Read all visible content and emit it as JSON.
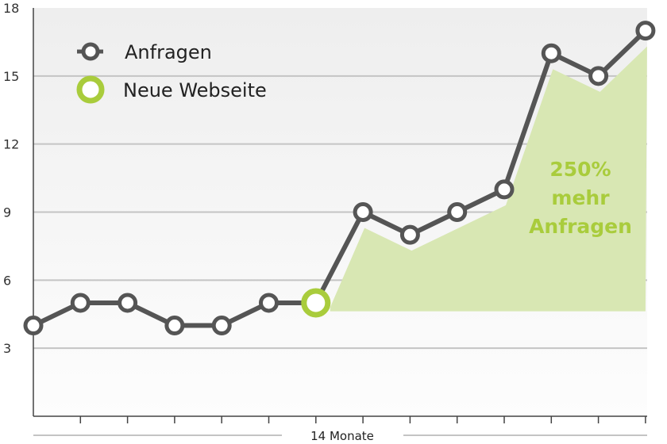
{
  "chart_data": {
    "type": "line",
    "title": "",
    "xlabel": "14 Monate",
    "ylabel": "",
    "ylim": [
      0,
      18
    ],
    "yticks": [
      3,
      6,
      9,
      12,
      15,
      18
    ],
    "x_count": 14,
    "grid": true,
    "legend_position": "top-left",
    "series": [
      {
        "name": "Anfragen",
        "color": "#555555",
        "values": [
          4,
          5,
          5,
          4,
          4,
          5,
          5,
          9,
          8,
          9,
          10,
          16,
          15,
          17
        ]
      }
    ],
    "markers": {
      "new_website_index": 6
    },
    "highlight_area": {
      "start_index": 6,
      "baseline": 4.8,
      "color": "#d8e7b3"
    },
    "annotation": {
      "lines": [
        "250%",
        "mehr",
        "Anfragen"
      ],
      "color": "#a9cc3c"
    },
    "legend": [
      {
        "label": "Anfragen",
        "icon": "gray-ring-line-icon",
        "color": "#555555"
      },
      {
        "label": "Neue Webseite",
        "icon": "green-ring-icon",
        "color": "#a9cc3c"
      }
    ]
  }
}
